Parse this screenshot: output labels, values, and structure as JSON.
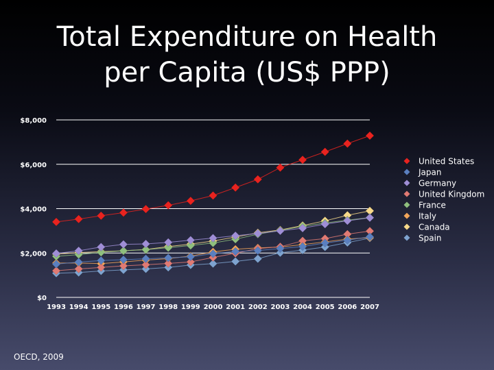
{
  "slide": {
    "title_line1": "Total Expenditure on Health",
    "title_line2": "per Capita (US$ PPP)",
    "source": "OECD, 2009"
  },
  "chart_data": {
    "type": "line",
    "title": "Total Expenditure on Health per Capita (US$ PPP)",
    "xlabel": "",
    "ylabel": "",
    "x": [
      1993,
      1994,
      1995,
      1996,
      1997,
      1998,
      1999,
      2000,
      2001,
      2002,
      2003,
      2004,
      2005,
      2006,
      2007
    ],
    "ylim": [
      0,
      8000
    ],
    "yticks": [
      0,
      2000,
      4000,
      6000,
      8000
    ],
    "ytick_labels": [
      "$0",
      "$2,000",
      "$4,000",
      "$6,000",
      "$8,000"
    ],
    "grid": true,
    "legend_position": "right",
    "series": [
      {
        "name": "United States",
        "color": "#e8231f",
        "values": [
          3400,
          3530,
          3680,
          3820,
          3980,
          4150,
          4350,
          4590,
          4950,
          5320,
          5850,
          6200,
          6560,
          6930,
          7290
        ]
      },
      {
        "name": "Japan",
        "color": "#5a7fbf",
        "values": [
          1500,
          1590,
          1660,
          1700,
          1740,
          1780,
          1830,
          1970,
          2070,
          2110,
          2200,
          2290,
          2450,
          2580,
          2730
        ]
      },
      {
        "name": "Germany",
        "color": "#9f8ed6",
        "values": [
          1980,
          2100,
          2270,
          2390,
          2410,
          2480,
          2580,
          2670,
          2780,
          2880,
          3000,
          3120,
          3300,
          3450,
          3590
        ]
      },
      {
        "name": "United Kingdom",
        "color": "#e07a73",
        "values": [
          1200,
          1280,
          1350,
          1420,
          1470,
          1530,
          1600,
          1800,
          1990,
          2200,
          2280,
          2550,
          2650,
          2850,
          2990
        ]
      },
      {
        "name": "France",
        "color": "#8fbf7e",
        "values": [
          1850,
          1930,
          2030,
          2100,
          2150,
          2240,
          2340,
          2450,
          2620,
          2850,
          3020,
          3200,
          3350,
          3480,
          3600
        ]
      },
      {
        "name": "Italy",
        "color": "#f2a55a",
        "values": [
          1550,
          1550,
          1520,
          1600,
          1680,
          1750,
          1860,
          2050,
          2170,
          2230,
          2270,
          2380,
          2500,
          2630,
          2690
        ]
      },
      {
        "name": "Canada",
        "color": "#f7d98a",
        "values": [
          1950,
          2020,
          2060,
          2100,
          2160,
          2290,
          2400,
          2540,
          2720,
          2910,
          3040,
          3240,
          3450,
          3700,
          3900
        ]
      },
      {
        "name": "Spain",
        "color": "#7ea3cf",
        "values": [
          1090,
          1120,
          1190,
          1240,
          1280,
          1350,
          1460,
          1520,
          1620,
          1740,
          2010,
          2130,
          2270,
          2470,
          2670
        ]
      }
    ]
  }
}
